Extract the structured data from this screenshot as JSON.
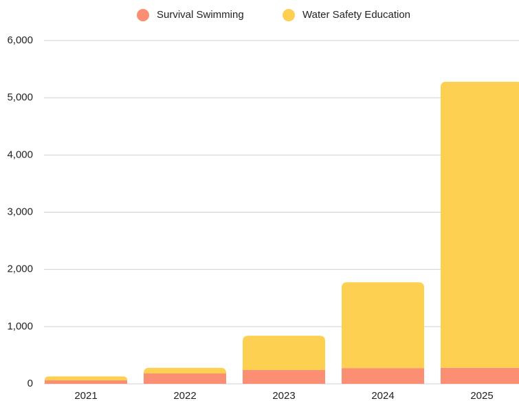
{
  "chart_data": {
    "type": "stacked_bar",
    "categories": [
      "2021",
      "2022",
      "2023",
      "2024",
      "2025"
    ],
    "series": [
      {
        "name": "Survival Swimming",
        "color": "#fb8f73",
        "values": [
          60,
          180,
          240,
          275,
          280
        ]
      },
      {
        "name": "Water Safety Education",
        "color": "#fdd052",
        "values": [
          70,
          100,
          600,
          1500,
          5000
        ]
      }
    ],
    "ylim": [
      0,
      6000
    ],
    "yticks": [
      0,
      {
        "value": 1000,
        "label": "1,000"
      },
      {
        "value": 2000,
        "label": "2,000"
      },
      {
        "value": 3000,
        "label": "3,000"
      },
      {
        "value": 4000,
        "label": "4,000"
      },
      {
        "value": 5000,
        "label": "5,000"
      },
      {
        "value": 6000,
        "label": "6,000"
      }
    ],
    "grid": true,
    "legend": "top"
  }
}
